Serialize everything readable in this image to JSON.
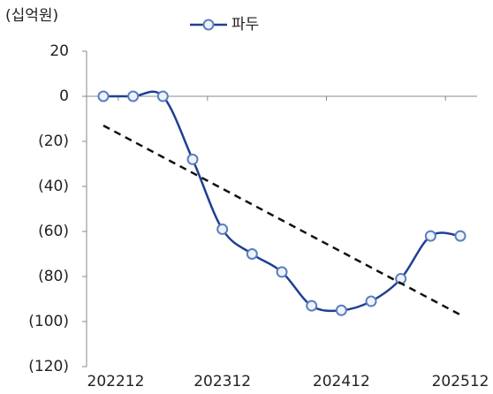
{
  "chart_data": {
    "type": "line",
    "unit_label": "(십억원)",
    "categories": [
      "202212",
      null,
      null,
      null,
      "202312",
      null,
      null,
      null,
      "202412",
      null,
      null,
      null,
      "202512"
    ],
    "series": [
      {
        "name": "파두",
        "color": "#1f3f93",
        "values": [
          0,
          0,
          0,
          -28,
          -59,
          -70,
          -78,
          -93,
          -95,
          -91,
          -81,
          -62,
          -62
        ]
      },
      {
        "color": "#111111",
        "dashed": true,
        "values": [
          -13,
          -20,
          -27,
          -34,
          -41,
          -48,
          -55,
          -62,
          -69,
          -76,
          -83,
          -90,
          -97
        ]
      }
    ],
    "ylim": [
      -120,
      20
    ],
    "yticks": [
      {
        "value": -120,
        "label": "(120)"
      },
      {
        "value": -100,
        "label": "(100)"
      },
      {
        "value": -80,
        "label": "(80)"
      },
      {
        "value": -60,
        "label": "(60)"
      },
      {
        "value": -40,
        "label": "(40)"
      },
      {
        "value": -20,
        "label": "(20)"
      },
      0,
      20
    ]
  }
}
